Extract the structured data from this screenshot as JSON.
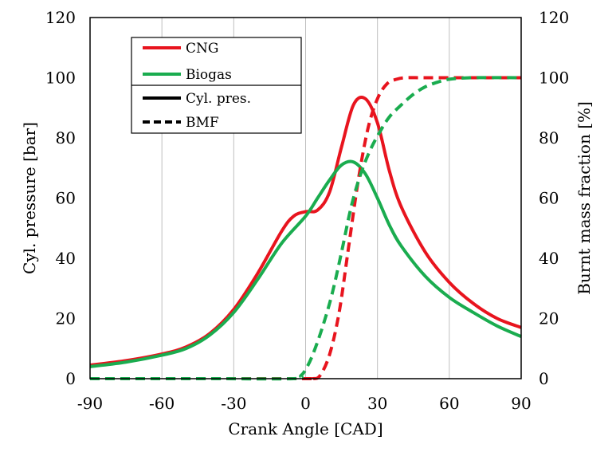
{
  "chart_data": {
    "type": "line",
    "x_axis": {
      "label": "Crank Angle [CAD]",
      "range": [
        -90,
        90
      ],
      "ticks": [
        -90,
        -60,
        -30,
        0,
        30,
        60,
        90
      ]
    },
    "y_axis_left": {
      "label": "Cyl. pressure [bar]",
      "range": [
        0,
        120
      ],
      "ticks": [
        0,
        20,
        40,
        60,
        80,
        100,
        120
      ]
    },
    "y_axis_right": {
      "label": "Burnt mass fraction [%]",
      "range": [
        0,
        120
      ],
      "ticks": [
        0,
        20,
        40,
        60,
        80,
        100,
        120
      ]
    },
    "grid": {
      "vertical": true,
      "horizontal": false
    },
    "legend": {
      "placement": "top-left",
      "fuels": [
        {
          "label": "CNG",
          "color": "#e8141e"
        },
        {
          "label": "Biogas",
          "color": "#1aac4f"
        }
      ],
      "styles": [
        {
          "label": "Cyl. pres.",
          "dash": "solid"
        },
        {
          "label": "BMF",
          "dash": "dashed"
        }
      ]
    },
    "series": [
      {
        "name": "CNG Cyl. pres.",
        "fuel": "CNG",
        "axis": "left",
        "style": "solid",
        "color": "#e8141e",
        "x": [
          -90,
          -75,
          -60,
          -50,
          -40,
          -30,
          -20,
          -10,
          -5,
          0,
          5,
          10,
          15,
          20,
          25,
          30,
          35,
          40,
          50,
          60,
          70,
          80,
          90
        ],
        "y": [
          4.5,
          6,
          8.2,
          10.5,
          15,
          23,
          35,
          49,
          54,
          55.5,
          56,
          62,
          77,
          91,
          93,
          85,
          69,
          57,
          42,
          32,
          25,
          20,
          17
        ]
      },
      {
        "name": "Biogas Cyl. pres.",
        "fuel": "Biogas",
        "axis": "left",
        "style": "solid",
        "color": "#1aac4f",
        "x": [
          -90,
          -75,
          -60,
          -50,
          -40,
          -30,
          -20,
          -10,
          0,
          5,
          10,
          15,
          20,
          25,
          30,
          35,
          40,
          50,
          60,
          70,
          80,
          90
        ],
        "y": [
          4,
          5.5,
          7.8,
          10,
          14.5,
          22,
          33,
          45,
          54,
          60,
          66,
          71,
          72,
          68,
          60,
          51,
          44,
          34,
          27,
          22,
          17.5,
          14
        ]
      },
      {
        "name": "CNG BMF",
        "fuel": "CNG",
        "axis": "right",
        "style": "dashed",
        "color": "#e8141e",
        "x": [
          -90,
          -40,
          0,
          3,
          6,
          10,
          14,
          18,
          22,
          26,
          30,
          34,
          38,
          42,
          50,
          70,
          90
        ],
        "y": [
          0,
          0,
          0,
          0,
          1,
          8,
          22,
          44,
          66,
          83,
          93,
          98,
          99.5,
          100,
          100,
          100,
          100
        ]
      },
      {
        "name": "Biogas BMF",
        "fuel": "Biogas",
        "axis": "right",
        "style": "dashed",
        "color": "#1aac4f",
        "x": [
          -90,
          -40,
          -5,
          -2,
          0,
          3,
          7,
          11,
          15,
          19,
          23,
          27,
          31,
          35,
          40,
          45,
          50,
          55,
          60,
          70,
          90
        ],
        "y": [
          0,
          0,
          0,
          1,
          3,
          8,
          17,
          28,
          42,
          57,
          68,
          76,
          82,
          87,
          91,
          94.5,
          97,
          98.5,
          99.5,
          100,
          100
        ]
      }
    ]
  }
}
